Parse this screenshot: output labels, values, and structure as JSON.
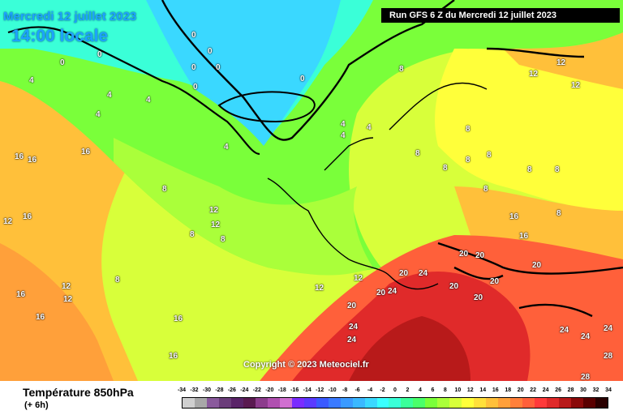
{
  "header": {
    "date": "Mercredi 12 juillet 2023",
    "time": "14:00 locale",
    "run": "Run GFS 6 Z du Mercredi 12 juillet 2023"
  },
  "copyright": "Copyright © 2023 Meteociel.fr",
  "footer": {
    "title": "Température 850hPa",
    "subtitle": "(+ 6h)"
  },
  "legend": {
    "labels": [
      "-34",
      "-32",
      "-30",
      "-28",
      "-26",
      "-24",
      "-22",
      "-20",
      "-18",
      "-16",
      "-14",
      "-12",
      "-10",
      "-8",
      "-6",
      "-4",
      "-2",
      "0",
      "2",
      "4",
      "6",
      "8",
      "10",
      "12",
      "14",
      "16",
      "18",
      "20",
      "22",
      "24",
      "26",
      "28",
      "30",
      "32",
      "34"
    ],
    "colors": [
      "#cfcfcf",
      "#a8a8a8",
      "#8a5a9c",
      "#6b3d7a",
      "#5a2468",
      "#5a1a50",
      "#8c3c8c",
      "#b050b0",
      "#d070d0",
      "#7a2cff",
      "#5a3aff",
      "#3a5aff",
      "#3a7aff",
      "#3a9aff",
      "#3ab8ff",
      "#3ad8ff",
      "#3affff",
      "#3affd8",
      "#3aff9a",
      "#4aff6a",
      "#7aff3a",
      "#aaff3a",
      "#d8ff3a",
      "#ffff3a",
      "#ffe03a",
      "#ffc03a",
      "#ffa03a",
      "#ff803a",
      "#ff603a",
      "#ff3a3a",
      "#e02a2a",
      "#b81a1a",
      "#8a0a0a",
      "#5a0000",
      "#2a0000"
    ]
  },
  "isotherms": [
    "0",
    "0",
    "0",
    "0",
    "0",
    "0",
    "0",
    "0",
    "4",
    "4",
    "4",
    "4",
    "4",
    "4",
    "4",
    "4",
    "8",
    "8",
    "8",
    "8",
    "8",
    "8",
    "8",
    "8",
    "8",
    "8",
    "8",
    "8",
    "8",
    "8",
    "12",
    "12",
    "12",
    "12",
    "12",
    "12",
    "12",
    "12",
    "12",
    "12",
    "16",
    "16",
    "16",
    "16",
    "16",
    "16",
    "16",
    "16",
    "16",
    "16",
    "20",
    "20",
    "20",
    "20",
    "20",
    "20",
    "20",
    "20",
    "20",
    "24",
    "24",
    "24",
    "24",
    "24",
    "24",
    "24",
    "28",
    "28",
    "28"
  ]
}
